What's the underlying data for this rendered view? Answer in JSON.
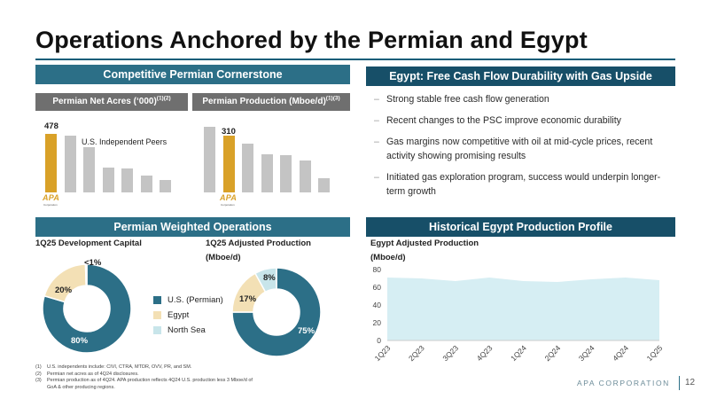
{
  "title": "Operations Anchored by the Permian and Egypt",
  "colors": {
    "teal": "#2c6f87",
    "navy": "#174f68",
    "gold": "#d9a128",
    "light_teal": "#c8e5ea",
    "cream": "#f3e0b5",
    "gray": "#c4c4c4",
    "egypt_area": "#d6eef3"
  },
  "left_top": {
    "header": "Competitive Permian Cornerstone",
    "acres": {
      "label": "Permian Net Acres (‘000)",
      "sup": "(1)(2)",
      "apa_value": "478",
      "peers_label": "U.S. Independent Peers"
    },
    "production": {
      "label": "Permian Production (Mboe/d)",
      "sup": "(1)(3)",
      "apa_value": "310"
    },
    "logo_text": "APA",
    "logo_sub": "Corporation"
  },
  "right_top": {
    "header": "Egypt: Free Cash Flow Durability with Gas Upside",
    "bullets": [
      "Strong stable free cash flow generation",
      "Recent changes to the PSC improve economic durability",
      "Gas margins now competitive with oil at mid-cycle prices, recent activity showing promising results",
      "Initiated gas exploration program, success would underpin longer-term growth"
    ]
  },
  "left_bottom": {
    "header": "Permian Weighted Operations",
    "capital": {
      "title": "1Q25 Development Capital",
      "labels": [
        "80%",
        "20%",
        "<1%"
      ]
    },
    "production": {
      "title_line1": "1Q25 Adjusted Production",
      "title_line2": "(Mboe/d)",
      "labels": [
        "75%",
        "17%",
        "8%"
      ]
    },
    "legend": [
      "U.S. (Permian)",
      "Egypt",
      "North Sea"
    ]
  },
  "right_bottom": {
    "header": "Historical Egypt Production Profile",
    "title_line1": "Egypt Adjusted Production",
    "title_line2": "(Mboe/d)"
  },
  "chart_data": [
    {
      "type": "bar",
      "title": "Permian Net Acres (‘000)",
      "categories": [
        "APA",
        "Peer 1",
        "Peer 2",
        "Peer 3",
        "Peer 4",
        "Peer 5",
        "Peer 6"
      ],
      "values": [
        478,
        460,
        370,
        205,
        195,
        135,
        100
      ],
      "annotations": [
        "478",
        "U.S. Independent Peers"
      ]
    },
    {
      "type": "bar",
      "title": "Permian Production (Mboe/d)",
      "categories": [
        "Peer 1",
        "APA",
        "Peer 2",
        "Peer 3",
        "Peer 4",
        "Peer 5",
        "Peer 6"
      ],
      "values": [
        360,
        310,
        270,
        210,
        205,
        175,
        80
      ],
      "annotations": [
        "310"
      ]
    },
    {
      "type": "pie",
      "title": "1Q25 Development Capital",
      "categories": [
        "U.S. (Permian)",
        "Egypt",
        "North Sea"
      ],
      "values": [
        80,
        20,
        0.5
      ]
    },
    {
      "type": "pie",
      "title": "1Q25 Adjusted Production (Mboe/d)",
      "categories": [
        "U.S. (Permian)",
        "Egypt",
        "North Sea"
      ],
      "values": [
        75,
        17,
        8
      ]
    },
    {
      "type": "area",
      "title": "Egypt Adjusted Production (Mboe/d)",
      "x": [
        "1Q23",
        "2Q23",
        "3Q23",
        "4Q23",
        "1Q24",
        "2Q24",
        "3Q24",
        "4Q24",
        "1Q25"
      ],
      "values": [
        71,
        70,
        67,
        71,
        67,
        66,
        69,
        71,
        68
      ],
      "ylim": [
        0,
        80
      ],
      "yticks": [
        "0",
        "20",
        "40",
        "60",
        "80"
      ],
      "grid": false
    }
  ],
  "footnotes": [
    {
      "num": "(1)",
      "text": "U.S. independents include: CIVI, CTRA, MTDR, OVV, PR, and SM."
    },
    {
      "num": "(2)",
      "text": "Permian net acres as of 4Q24 disclosures."
    },
    {
      "num": "(3)",
      "text": "Permian production as of 4Q24. APA production reflects 4Q24 U.S. production less 3 Mboe/d of GoA & other producing regions."
    }
  ],
  "footer": {
    "corp": "APA CORPORATION",
    "page": "12"
  }
}
